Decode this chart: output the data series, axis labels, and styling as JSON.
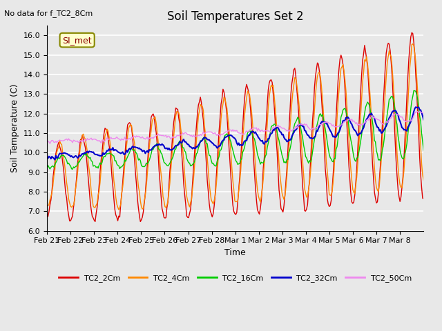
{
  "title": "Soil Temperatures Set 2",
  "xlabel": "Time",
  "ylabel": "Soil Temperature (C)",
  "top_left_text": "No data for f_TC2_8Cm",
  "legend_label_text": "SI_met",
  "ylim": [
    6.0,
    16.5
  ],
  "yticks": [
    6.0,
    7.0,
    8.0,
    9.0,
    10.0,
    11.0,
    12.0,
    13.0,
    14.0,
    15.0,
    16.0
  ],
  "xtick_labels": [
    "Feb 21",
    "Feb 22",
    "Feb 23",
    "Feb 24",
    "Feb 25",
    "Feb 26",
    "Feb 27",
    "Feb 28",
    "Mar 1",
    "Mar 2",
    "Mar 3",
    "Mar 4",
    "Mar 5",
    "Mar 6",
    "Mar 7",
    "Mar 8"
  ],
  "series_colors": {
    "TC2_2Cm": "#dd0000",
    "TC2_4Cm": "#ff8800",
    "TC2_16Cm": "#00cc00",
    "TC2_32Cm": "#0000cc",
    "TC2_50Cm": "#ee88ee"
  },
  "background_color": "#e8e8e8",
  "plot_bg_color": "#e8e8e8",
  "grid_color": "#ffffff"
}
